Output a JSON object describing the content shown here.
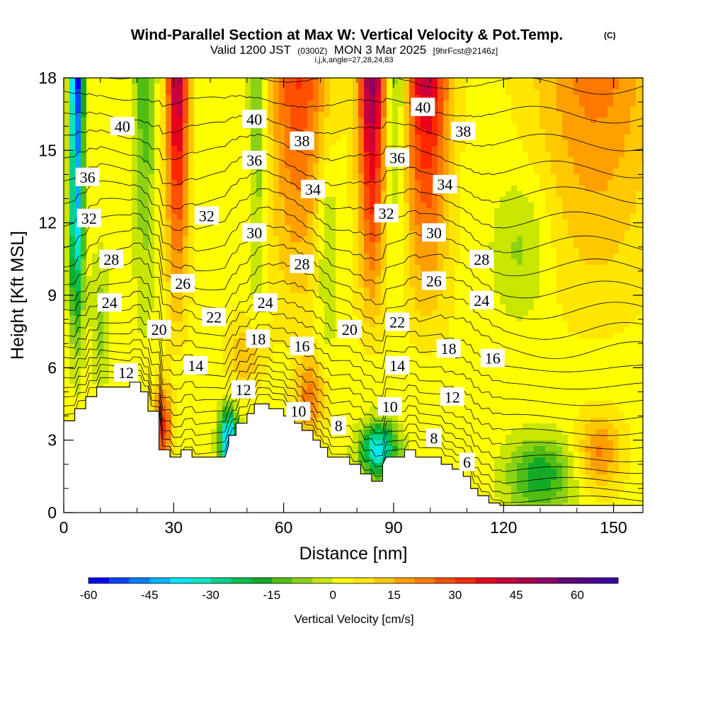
{
  "chart_data": {
    "type": "heatmap",
    "title": "Wind-Parallel Section at Max W: Vertical Velocity & Pot.Temp.",
    "title_mark": "(C)",
    "subtitle_main_prefix": "Valid 1200 JST",
    "subtitle_utc": "(0300Z)",
    "subtitle_main_suffix": "MON 3 Mar 2025",
    "subtitle_fcst": "[9hrFcst@2146z]",
    "subtitle_indices": "i,j,k,angle=27,28,24,83",
    "xlabel": "Distance [nm]",
    "ylabel": "Height [Kft MSL]",
    "xlim": [
      0,
      158
    ],
    "ylim": [
      0,
      18
    ],
    "x_ticks": [
      0,
      30,
      60,
      90,
      120,
      150
    ],
    "y_ticks": [
      0,
      3,
      6,
      9,
      12,
      15,
      18
    ],
    "colorbar": {
      "label": "Vertical Velocity [cm/s]",
      "min": -60,
      "max": 70,
      "step": 5,
      "tick_values": [
        -60,
        -45,
        -30,
        -15,
        0,
        15,
        30,
        45,
        60
      ],
      "colors": [
        "#0000ff",
        "#0044ff",
        "#0080ff",
        "#00b4ff",
        "#00e6ff",
        "#00e6c8",
        "#00d28c",
        "#00be50",
        "#14aa28",
        "#50be14",
        "#8cd214",
        "#c8e600",
        "#ffff00",
        "#ffe600",
        "#ffc800",
        "#ffa000",
        "#ff7800",
        "#ff5000",
        "#ff2800",
        "#e6001e",
        "#c8003c",
        "#aa0050",
        "#8c0064",
        "#640078",
        "#50008c",
        "#3c00a0"
      ]
    },
    "contour_labels": [
      {
        "text": "40",
        "x": 16,
        "y": 16.0
      },
      {
        "text": "36",
        "x": 6.5,
        "y": 13.9
      },
      {
        "text": "32",
        "x": 6.9,
        "y": 12.2
      },
      {
        "text": "28",
        "x": 13,
        "y": 10.5
      },
      {
        "text": "24",
        "x": 12.5,
        "y": 8.7
      },
      {
        "text": "20",
        "x": 26,
        "y": 7.6
      },
      {
        "text": "12",
        "x": 17,
        "y": 5.8
      },
      {
        "text": "14",
        "x": 36,
        "y": 6.1
      },
      {
        "text": "26",
        "x": 32.5,
        "y": 9.5
      },
      {
        "text": "22",
        "x": 41,
        "y": 8.1
      },
      {
        "text": "32",
        "x": 39,
        "y": 12.3
      },
      {
        "text": "40",
        "x": 52,
        "y": 16.3
      },
      {
        "text": "36",
        "x": 52,
        "y": 14.6
      },
      {
        "text": "30",
        "x": 52,
        "y": 11.6
      },
      {
        "text": "24",
        "x": 55,
        "y": 8.7
      },
      {
        "text": "18",
        "x": 53,
        "y": 7.2
      },
      {
        "text": "12",
        "x": 49,
        "y": 5.1
      },
      {
        "text": "38",
        "x": 65,
        "y": 15.4
      },
      {
        "text": "34",
        "x": 68,
        "y": 13.4
      },
      {
        "text": "28",
        "x": 65,
        "y": 10.3
      },
      {
        "text": "16",
        "x": 65,
        "y": 6.9
      },
      {
        "text": "10",
        "x": 64,
        "y": 4.2
      },
      {
        "text": "8",
        "x": 75,
        "y": 3.6
      },
      {
        "text": "20",
        "x": 78,
        "y": 7.6
      },
      {
        "text": "32",
        "x": 88,
        "y": 12.4
      },
      {
        "text": "36",
        "x": 91,
        "y": 14.7
      },
      {
        "text": "40",
        "x": 98,
        "y": 16.8
      },
      {
        "text": "22",
        "x": 91,
        "y": 7.9
      },
      {
        "text": "14",
        "x": 91,
        "y": 6.1
      },
      {
        "text": "10",
        "x": 89,
        "y": 4.4
      },
      {
        "text": "38",
        "x": 109,
        "y": 15.8
      },
      {
        "text": "34",
        "x": 104,
        "y": 13.6
      },
      {
        "text": "30",
        "x": 101,
        "y": 11.6
      },
      {
        "text": "26",
        "x": 101,
        "y": 9.6
      },
      {
        "text": "18",
        "x": 105,
        "y": 6.8
      },
      {
        "text": "12",
        "x": 106,
        "y": 4.8
      },
      {
        "text": "8",
        "x": 101,
        "y": 3.1
      },
      {
        "text": "6",
        "x": 110,
        "y": 2.1
      },
      {
        "text": "28",
        "x": 114,
        "y": 10.5
      },
      {
        "text": "24",
        "x": 114,
        "y": 8.8
      },
      {
        "text": "16",
        "x": 117,
        "y": 6.4
      }
    ],
    "terrain_profile": [
      [
        0,
        3.8
      ],
      [
        3,
        3.8
      ],
      [
        3,
        4.3
      ],
      [
        6,
        4.3
      ],
      [
        6,
        4.8
      ],
      [
        9,
        4.8
      ],
      [
        9,
        5.2
      ],
      [
        12,
        5.2
      ],
      [
        12,
        5.2
      ],
      [
        18,
        5.2
      ],
      [
        18,
        5.4
      ],
      [
        21,
        5.4
      ],
      [
        21,
        5.0
      ],
      [
        23,
        5.0
      ],
      [
        23,
        4.2
      ],
      [
        26,
        4.2
      ],
      [
        26,
        3.2
      ],
      [
        26,
        2.6
      ],
      [
        29,
        2.6
      ],
      [
        29,
        2.3
      ],
      [
        32,
        2.3
      ],
      [
        32,
        2.6
      ],
      [
        35,
        2.6
      ],
      [
        35,
        2.3
      ],
      [
        39,
        2.3
      ],
      [
        39,
        2.3
      ],
      [
        42,
        2.3
      ],
      [
        44,
        2.3
      ],
      [
        45,
        2.8
      ],
      [
        45,
        3.2
      ],
      [
        47,
        3.2
      ],
      [
        47,
        3.7
      ],
      [
        50,
        3.7
      ],
      [
        50,
        4.1
      ],
      [
        52,
        4.1
      ],
      [
        52,
        4.5
      ],
      [
        56,
        4.5
      ],
      [
        56,
        4.3
      ],
      [
        60,
        4.3
      ],
      [
        60,
        4.0
      ],
      [
        63,
        4.0
      ],
      [
        63,
        3.7
      ],
      [
        65,
        3.7
      ],
      [
        65,
        3.4
      ],
      [
        68,
        3.4
      ],
      [
        68,
        3.0
      ],
      [
        70,
        3.0
      ],
      [
        70,
        2.7
      ],
      [
        72,
        2.7
      ],
      [
        72,
        2.3
      ],
      [
        75,
        2.3
      ],
      [
        75,
        2.3
      ],
      [
        78,
        2.3
      ],
      [
        78,
        2.0
      ],
      [
        81,
        2.0
      ],
      [
        81,
        1.6
      ],
      [
        84,
        1.6
      ],
      [
        84,
        1.3
      ],
      [
        87,
        1.3
      ],
      [
        87,
        2.0
      ],
      [
        88,
        2.3
      ],
      [
        93,
        2.3
      ],
      [
        93,
        2.6
      ],
      [
        96,
        2.6
      ],
      [
        96,
        2.3
      ],
      [
        100,
        2.3
      ],
      [
        100,
        2.3
      ],
      [
        103,
        2.3
      ],
      [
        103,
        2.0
      ],
      [
        106,
        2.0
      ],
      [
        106,
        1.8
      ],
      [
        109,
        1.8
      ],
      [
        109,
        1.5
      ],
      [
        111,
        1.5
      ],
      [
        111,
        1.0
      ],
      [
        113,
        1.0
      ],
      [
        113,
        0.7
      ],
      [
        116,
        0.7
      ],
      [
        116,
        0.4
      ],
      [
        119,
        0.4
      ],
      [
        119,
        0.3
      ],
      [
        158,
        0.3
      ]
    ]
  }
}
